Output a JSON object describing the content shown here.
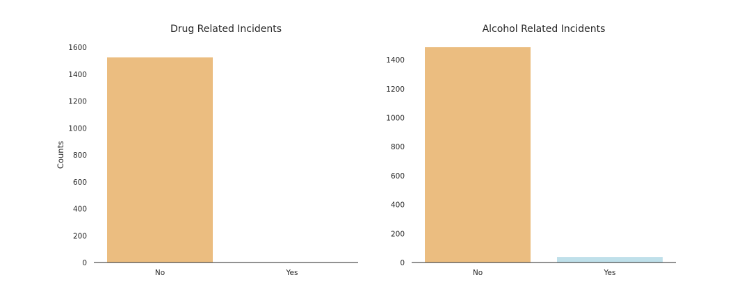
{
  "chart_data": [
    {
      "type": "bar",
      "title": "Drug Related Incidents",
      "xlabel": "",
      "ylabel": "Counts",
      "categories": [
        "No",
        "Yes"
      ],
      "values": [
        1525,
        0
      ],
      "colors": [
        "#ebbd80",
        "#bfe0ea"
      ],
      "ylim": [
        0,
        1600
      ],
      "yticks": [
        0,
        200,
        400,
        600,
        800,
        1000,
        1200,
        1400,
        1600
      ],
      "grid": false
    },
    {
      "type": "bar",
      "title": "Alcohol Related Incidents",
      "xlabel": "",
      "ylabel": "",
      "categories": [
        "No",
        "Yes"
      ],
      "values": [
        1487,
        38
      ],
      "colors": [
        "#ebbd80",
        "#bfe0ea"
      ],
      "ylim": [
        0,
        1487
      ],
      "yticks": [
        0,
        200,
        400,
        600,
        800,
        1000,
        1200,
        1400
      ],
      "grid": false
    }
  ]
}
